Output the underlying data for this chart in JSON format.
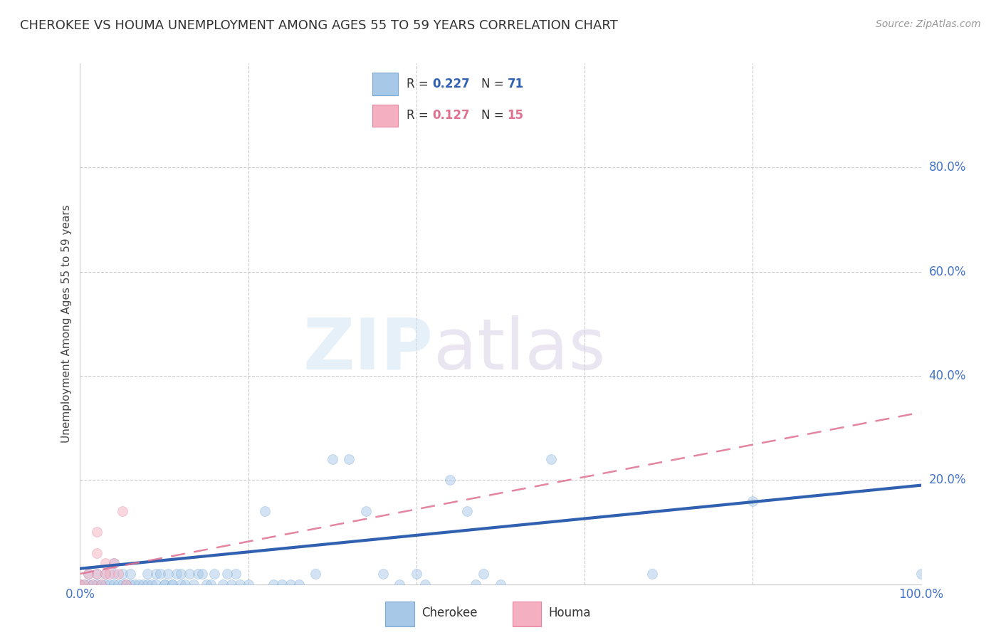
{
  "title": "CHEROKEE VS HOUMA UNEMPLOYMENT AMONG AGES 55 TO 59 YEARS CORRELATION CHART",
  "source": "Source: ZipAtlas.com",
  "ylabel": "Unemployment Among Ages 55 to 59 years",
  "xlim": [
    0.0,
    1.0
  ],
  "ylim": [
    0.0,
    1.0
  ],
  "xticks": [
    0.0,
    0.2,
    0.4,
    0.6,
    0.8,
    1.0
  ],
  "xticklabels": [
    "0.0%",
    "",
    "",
    "",
    "",
    "100.0%"
  ],
  "right_yticks": [
    0.2,
    0.4,
    0.6,
    0.8
  ],
  "right_yticklabels": [
    "20.0%",
    "40.0%",
    "60.0%",
    "80.0%"
  ],
  "grid_yticks": [
    0.0,
    0.2,
    0.4,
    0.6,
    0.8
  ],
  "background_color": "#ffffff",
  "grid_color": "#cccccc",
  "cherokee_color": "#a8c8e8",
  "houma_color": "#f4b0c0",
  "cherokee_edge": "#7aaad4",
  "houma_edge": "#e880a0",
  "trend_cherokee_color": "#3060b0",
  "trend_houma_color": "#e07090",
  "cherokee_points": [
    [
      0.0,
      0.0
    ],
    [
      0.005,
      0.0
    ],
    [
      0.01,
      0.02
    ],
    [
      0.01,
      0.0
    ],
    [
      0.015,
      0.0
    ],
    [
      0.02,
      0.02
    ],
    [
      0.02,
      0.0
    ],
    [
      0.025,
      0.0
    ],
    [
      0.03,
      0.0
    ],
    [
      0.03,
      0.02
    ],
    [
      0.035,
      0.0
    ],
    [
      0.04,
      0.02
    ],
    [
      0.04,
      0.04
    ],
    [
      0.04,
      0.0
    ],
    [
      0.045,
      0.0
    ],
    [
      0.05,
      0.02
    ],
    [
      0.05,
      0.0
    ],
    [
      0.055,
      0.0
    ],
    [
      0.06,
      0.02
    ],
    [
      0.06,
      0.0
    ],
    [
      0.065,
      0.0
    ],
    [
      0.07,
      0.0
    ],
    [
      0.075,
      0.0
    ],
    [
      0.08,
      0.02
    ],
    [
      0.08,
      0.0
    ],
    [
      0.085,
      0.0
    ],
    [
      0.09,
      0.02
    ],
    [
      0.09,
      0.0
    ],
    [
      0.095,
      0.02
    ],
    [
      0.1,
      0.0
    ],
    [
      0.1,
      0.0
    ],
    [
      0.105,
      0.02
    ],
    [
      0.11,
      0.0
    ],
    [
      0.11,
      0.0
    ],
    [
      0.115,
      0.02
    ],
    [
      0.12,
      0.0
    ],
    [
      0.12,
      0.02
    ],
    [
      0.125,
      0.0
    ],
    [
      0.13,
      0.02
    ],
    [
      0.135,
      0.0
    ],
    [
      0.14,
      0.02
    ],
    [
      0.145,
      0.02
    ],
    [
      0.15,
      0.0
    ],
    [
      0.155,
      0.0
    ],
    [
      0.16,
      0.02
    ],
    [
      0.17,
      0.0
    ],
    [
      0.175,
      0.02
    ],
    [
      0.18,
      0.0
    ],
    [
      0.185,
      0.02
    ],
    [
      0.19,
      0.0
    ],
    [
      0.2,
      0.0
    ],
    [
      0.22,
      0.14
    ],
    [
      0.23,
      0.0
    ],
    [
      0.24,
      0.0
    ],
    [
      0.25,
      0.0
    ],
    [
      0.26,
      0.0
    ],
    [
      0.28,
      0.02
    ],
    [
      0.3,
      0.24
    ],
    [
      0.32,
      0.24
    ],
    [
      0.34,
      0.14
    ],
    [
      0.36,
      0.02
    ],
    [
      0.38,
      0.0
    ],
    [
      0.4,
      0.02
    ],
    [
      0.41,
      0.0
    ],
    [
      0.44,
      0.2
    ],
    [
      0.46,
      0.14
    ],
    [
      0.47,
      0.0
    ],
    [
      0.48,
      0.02
    ],
    [
      0.5,
      0.0
    ],
    [
      0.56,
      0.24
    ],
    [
      0.68,
      0.02
    ],
    [
      0.8,
      0.16
    ],
    [
      1.0,
      0.02
    ]
  ],
  "houma_points": [
    [
      0.0,
      0.0
    ],
    [
      0.005,
      0.0
    ],
    [
      0.01,
      0.02
    ],
    [
      0.015,
      0.0
    ],
    [
      0.02,
      0.02
    ],
    [
      0.02,
      0.06
    ],
    [
      0.02,
      0.1
    ],
    [
      0.025,
      0.0
    ],
    [
      0.03,
      0.02
    ],
    [
      0.03,
      0.04
    ],
    [
      0.035,
      0.02
    ],
    [
      0.04,
      0.04
    ],
    [
      0.045,
      0.02
    ],
    [
      0.05,
      0.14
    ],
    [
      0.055,
      0.0
    ]
  ],
  "cherokee_trend_x": [
    0.0,
    1.0
  ],
  "cherokee_trend_y": [
    0.03,
    0.19
  ],
  "houma_trend_x": [
    0.0,
    1.0
  ],
  "houma_trend_y": [
    0.02,
    0.33
  ],
  "marker_size": 100,
  "alpha": 0.5
}
